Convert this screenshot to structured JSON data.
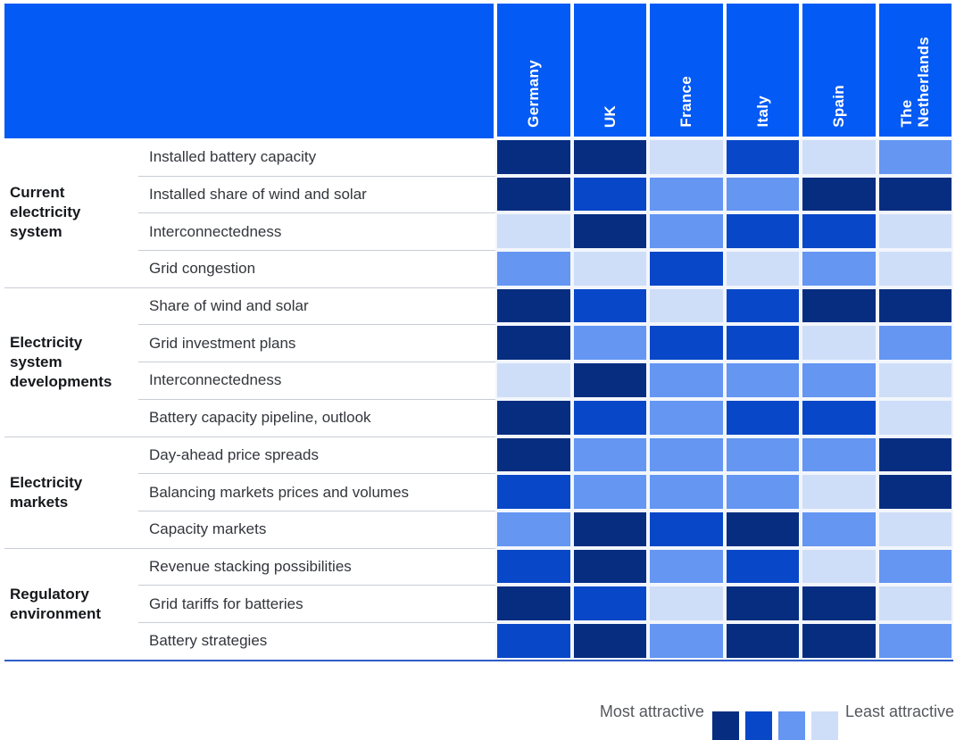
{
  "colors": {
    "header_bg": "#035af5",
    "divider": "#c8cdd6",
    "bottom_rule": "#2f5cc9",
    "level_colors": {
      "1": "#062d80",
      "2": "#0847c8",
      "3": "#6496f2",
      "4": "#cfdef8"
    }
  },
  "chart_data": {
    "type": "heatmap",
    "title": "",
    "columns": [
      "Germany",
      "UK",
      "France",
      "Italy",
      "Spain",
      "The\nNetherlands"
    ],
    "scale_note": "1 = most attractive (darkest blue), 4 = least attractive (lightest blue)",
    "level_colors": {
      "1": "#062d80",
      "2": "#0847c8",
      "3": "#6496f2",
      "4": "#cfdef8"
    },
    "groups": [
      {
        "label": "Current electricity system",
        "rows": [
          {
            "label": "Installed battery capacity",
            "values": [
              1,
              1,
              4,
              2,
              4,
              3
            ]
          },
          {
            "label": "Installed share of wind and solar",
            "values": [
              1,
              2,
              3,
              3,
              1,
              1
            ]
          },
          {
            "label": "Interconnectedness",
            "values": [
              4,
              1,
              3,
              2,
              2,
              4
            ]
          },
          {
            "label": "Grid congestion",
            "values": [
              3,
              4,
              2,
              4,
              3,
              4
            ]
          }
        ]
      },
      {
        "label": "Electricity system developments",
        "rows": [
          {
            "label": "Share of wind and solar",
            "values": [
              1,
              2,
              4,
              2,
              1,
              1
            ]
          },
          {
            "label": "Grid investment plans",
            "values": [
              1,
              3,
              2,
              2,
              4,
              3
            ]
          },
          {
            "label": "Interconnectedness",
            "values": [
              4,
              1,
              3,
              3,
              3,
              4
            ]
          },
          {
            "label": "Battery capacity pipeline, outlook",
            "values": [
              1,
              2,
              3,
              2,
              2,
              4
            ]
          }
        ]
      },
      {
        "label": "Electricity markets",
        "rows": [
          {
            "label": "Day-ahead price spreads",
            "values": [
              1,
              3,
              3,
              3,
              3,
              1
            ]
          },
          {
            "label": "Balancing markets prices and volumes",
            "values": [
              2,
              3,
              3,
              3,
              4,
              1
            ]
          },
          {
            "label": "Capacity markets",
            "values": [
              3,
              1,
              2,
              1,
              3,
              4
            ]
          }
        ]
      },
      {
        "label": "Regulatory environment",
        "rows": [
          {
            "label": "Revenue stacking possibilities",
            "values": [
              2,
              1,
              3,
              2,
              4,
              3
            ]
          },
          {
            "label": "Grid tariffs for batteries",
            "values": [
              1,
              2,
              4,
              1,
              1,
              4
            ]
          },
          {
            "label": "Battery strategies",
            "values": [
              2,
              1,
              3,
              1,
              1,
              3
            ]
          }
        ]
      }
    ],
    "legend": {
      "left_label": "Most attractive",
      "right_label": "Least attractive",
      "order": [
        1,
        2,
        3,
        4
      ],
      "position": "bottom-right"
    }
  }
}
